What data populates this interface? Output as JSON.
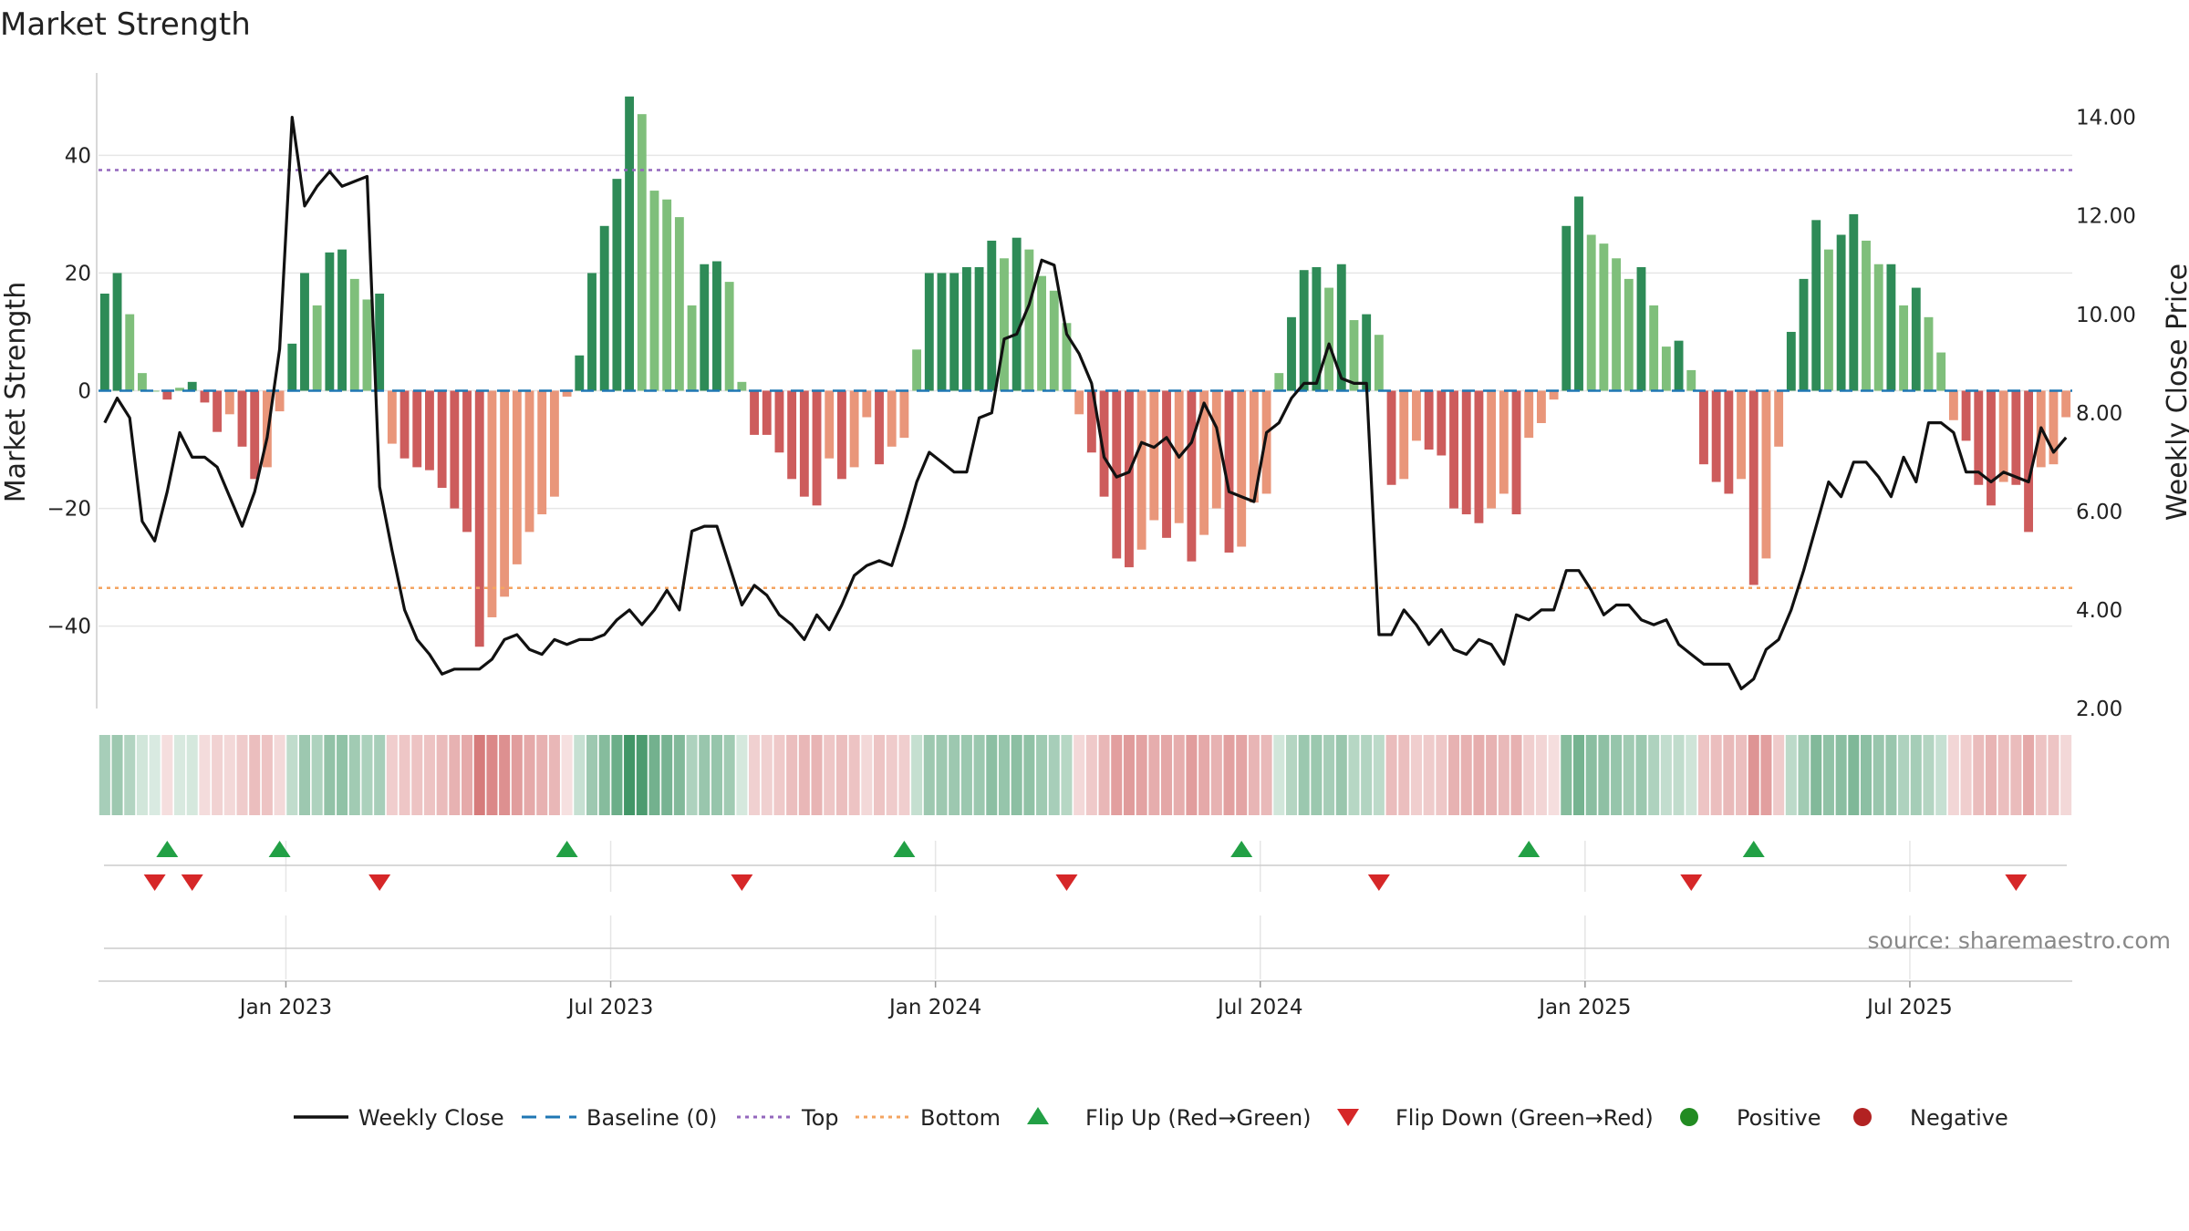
{
  "chart_data": {
    "type": "bar+line",
    "title": "Market Strength",
    "ylabel_left": "Market Strength",
    "ylabel_right": "Weekly Close Price",
    "ylim_left": [
      -54,
      54
    ],
    "ylim_right": [
      2.0,
      14.9
    ],
    "yticks_left": [
      "40",
      "20",
      "0",
      "−20",
      "−40"
    ],
    "ytick_values_left": [
      40,
      20,
      0,
      -20,
      -40
    ],
    "yticks_right": [
      "14.00",
      "12.00",
      "10.00",
      "8.00",
      "6.00",
      "4.00",
      "2.00"
    ],
    "ytick_values_right": [
      14,
      12,
      10,
      8,
      6,
      4,
      2
    ],
    "x_labels": [
      "Jan 2023",
      "Jul 2023",
      "Jan 2024",
      "Jul 2024",
      "Jan 2025",
      "Jul 2025"
    ],
    "x_label_weeks": [
      14.5,
      40.5,
      66.5,
      92.5,
      118.5,
      144.5
    ],
    "top_line": 37.5,
    "bottom_line": -33.5,
    "baseline": 0,
    "strength": [
      16.5,
      20,
      13,
      3,
      0,
      -1.5,
      0.5,
      1.5,
      -2,
      -7,
      -4,
      -9.5,
      -15,
      -13,
      -3.5,
      8,
      20,
      14.5,
      23.5,
      24,
      19,
      15.5,
      16.5,
      -9,
      -11.5,
      -13,
      -13.5,
      -16.5,
      -20,
      -24,
      -43.5,
      -38.5,
      -35,
      -29.5,
      -24,
      -21,
      -18,
      -1,
      6,
      20,
      28,
      36,
      50,
      47,
      34,
      32.5,
      29.5,
      14.5,
      21.5,
      22,
      18.5,
      1.5,
      -7.5,
      -7.5,
      -10.5,
      -15,
      -18,
      -19.5,
      -11.5,
      -15,
      -13,
      -4.5,
      -12.5,
      -9.5,
      -8,
      7,
      20,
      20,
      20,
      21,
      21,
      25.5,
      22.5,
      26,
      24,
      19.5,
      17,
      11.5,
      -4,
      -10.5,
      -18,
      -28.5,
      -30,
      -27,
      -22,
      -25,
      -22.5,
      -29,
      -24.5,
      -20,
      -27.5,
      -26.5,
      -19,
      -17.5,
      3,
      12.5,
      20.5,
      21,
      17.5,
      21.5,
      12,
      13,
      9.5,
      -16,
      -15,
      -8.5,
      -10,
      -11,
      -20,
      -21,
      -22.5,
      -20,
      -17.5,
      -21,
      -8,
      -5.5,
      -1.5,
      28,
      33,
      26.5,
      25,
      22.5,
      19,
      21,
      14.5,
      7.5,
      8.5,
      3.5,
      -12.5,
      -15.5,
      -17.5,
      -15,
      -33,
      -28.5,
      -9.5,
      10,
      19,
      29,
      24,
      26.5,
      30,
      25.5,
      21.5,
      21.5,
      14.5,
      17.5,
      12.5,
      6.5,
      -5,
      -8.5,
      -16,
      -19.5,
      -15.5,
      -16,
      -24,
      -13,
      -12.5,
      -4.5
    ],
    "weekly_close": [
      7.8,
      8.3,
      7.9,
      5.8,
      5.4,
      6.4,
      7.6,
      7.1,
      7.1,
      6.9,
      6.3,
      5.7,
      6.4,
      7.5,
      9.3,
      14.0,
      12.2,
      12.6,
      12.9,
      12.6,
      12.7,
      12.8,
      6.5,
      5.2,
      4.0,
      3.4,
      3.1,
      2.7,
      2.8,
      2.8,
      2.8,
      3.0,
      3.4,
      3.5,
      3.2,
      3.1,
      3.4,
      3.3,
      3.4,
      3.4,
      3.5,
      3.8,
      4.0,
      3.7,
      4.0,
      4.4,
      4.0,
      5.6,
      5.7,
      5.7,
      4.9,
      4.1,
      4.5,
      4.3,
      3.9,
      3.7,
      3.4,
      3.9,
      3.6,
      4.1,
      4.7,
      4.9,
      5.0,
      4.9,
      5.7,
      6.6,
      7.2,
      7.0,
      6.8,
      6.8,
      7.9,
      8.0,
      9.5,
      9.6,
      10.2,
      11.1,
      11.0,
      9.6,
      9.2,
      8.6,
      7.1,
      6.7,
      6.8,
      7.4,
      7.3,
      7.5,
      7.1,
      7.4,
      8.2,
      7.7,
      6.4,
      6.3,
      6.2,
      7.6,
      7.8,
      8.3,
      8.6,
      8.6,
      9.4,
      8.7,
      8.6,
      8.6,
      3.5,
      3.5,
      4.0,
      3.7,
      3.3,
      3.6,
      3.2,
      3.1,
      3.4,
      3.3,
      2.9,
      3.9,
      3.8,
      4.0,
      4.0,
      4.8,
      4.8,
      4.4,
      3.9,
      4.1,
      4.1,
      3.8,
      3.7,
      3.8,
      3.3,
      3.1,
      2.9,
      2.9,
      2.9,
      2.4,
      2.6,
      3.2,
      3.4,
      4.0,
      4.8,
      5.7,
      6.6,
      6.3,
      7.0,
      7.0,
      6.7,
      6.3,
      7.1,
      6.6,
      7.8,
      7.8,
      7.6,
      6.8,
      6.8,
      6.6,
      6.8,
      6.7,
      6.6,
      7.7,
      7.2,
      7.5
    ],
    "flip_up_weeks": [
      5,
      14,
      37,
      64,
      91,
      114,
      132
    ],
    "flip_down_weeks": [
      4,
      7,
      22,
      51,
      77,
      102,
      127,
      153
    ],
    "legend": [
      "Weekly Close",
      "Baseline (0)",
      "Top",
      "Bottom",
      "Flip Up (Red→Green)",
      "Flip Down (Green→Red)",
      "Positive",
      "Negative"
    ],
    "source": "source: sharemaestro.com"
  },
  "colors": {
    "pos_strong": "#2e8b57",
    "pos_light": "#7fbf7b",
    "neg_strong": "#cd5c5c",
    "neg_light": "#e9967a",
    "line": "#111111",
    "baseline": "#1f77b4",
    "top": "#9467bd",
    "bottom": "#f4a460",
    "flip_up": "#22a045",
    "flip_down": "#d62728",
    "legend_pos": "#228b22",
    "legend_neg": "#b22222",
    "grid": "#e6e6e6"
  }
}
